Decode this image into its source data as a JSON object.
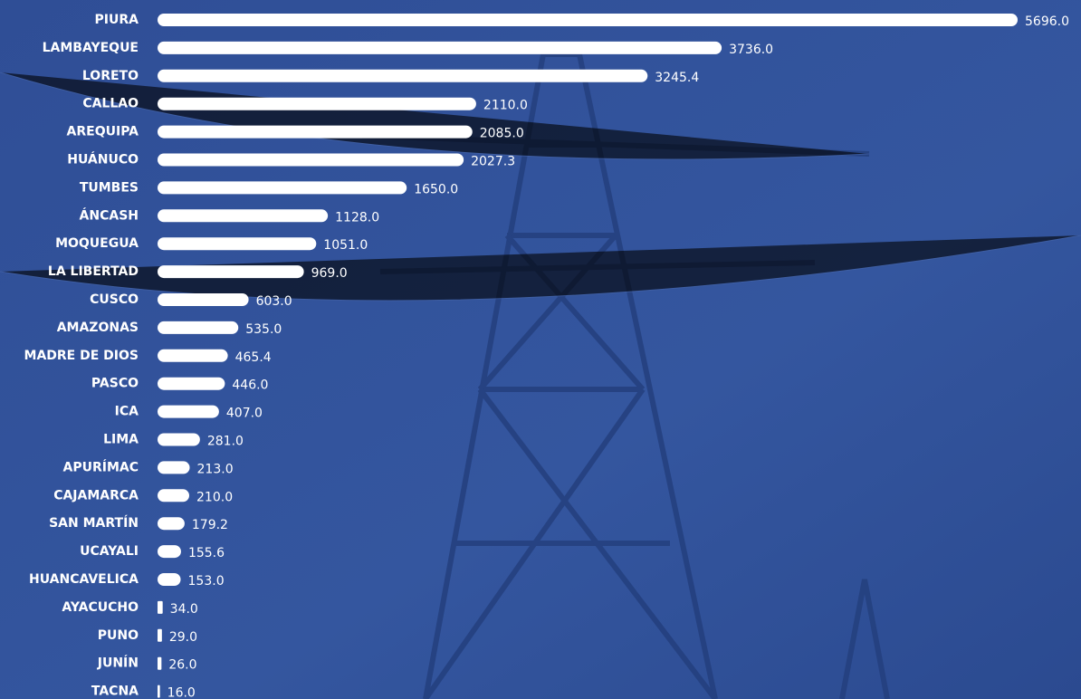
{
  "chart_data": {
    "type": "bar",
    "orientation": "horizontal",
    "color": "#ffffff",
    "categories": [
      "PIURA",
      "LAMBAYEQUE",
      "LORETO",
      "CALLAO",
      "AREQUIPA",
      "HUÁNUCO",
      "TUMBES",
      "ÁNCASH",
      "MOQUEGUA",
      "LA LIBERTAD",
      "CUSCO",
      "AMAZONAS",
      "MADRE DE DIOS",
      "PASCO",
      "ICA",
      "LIMA",
      "APURÍMAC",
      "CAJAMARCA",
      "SAN MARTÍN",
      "UCAYALI",
      "HUANCAVELICA",
      "AYACUCHO",
      "PUNO",
      "JUNÍN",
      "TACNA"
    ],
    "values": [
      5696,
      3736,
      3245.4,
      2110,
      2085,
      2027.3,
      1650,
      1128,
      1051,
      969,
      603,
      535,
      465.4,
      446,
      407,
      281,
      213,
      210,
      179.2,
      155.6,
      153,
      34,
      29,
      26,
      16
    ],
    "value_labels": [
      "5696.0",
      "3736.0",
      "3245.4",
      "2110.0",
      "2085.0",
      "2027.3",
      "1650.0",
      "1128.0",
      "1051.0",
      "969.0",
      "603.0",
      "535.0",
      "465.4",
      "446.0",
      "407.0",
      "281.0",
      "213.0",
      "210.0",
      "179.2",
      "155.6",
      "153.0",
      "34.0",
      "29.0",
      "26.0",
      "16.0"
    ]
  }
}
